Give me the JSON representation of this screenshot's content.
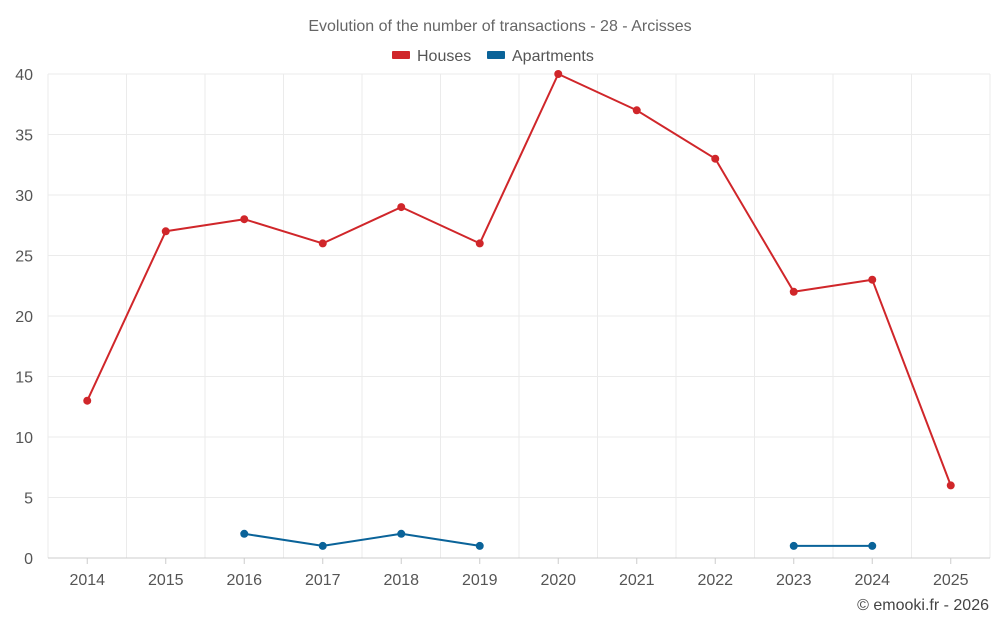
{
  "chart_data": {
    "type": "line",
    "title": "Evolution of the number of transactions - 28 - Arcisses",
    "categories": [
      "2014",
      "2015",
      "2016",
      "2017",
      "2018",
      "2019",
      "2020",
      "2021",
      "2022",
      "2023",
      "2024",
      "2025"
    ],
    "ylim": [
      0,
      40
    ],
    "yticks": [
      0,
      5,
      10,
      15,
      20,
      25,
      30,
      35,
      40
    ],
    "grid": true,
    "legend_position": "top-center",
    "series": [
      {
        "name": "Houses",
        "color": "#d0262a",
        "values": [
          13,
          27,
          28,
          26,
          29,
          26,
          40,
          37,
          33,
          22,
          23,
          6
        ]
      },
      {
        "name": "Apartments",
        "color": "#0a6399",
        "values": [
          null,
          null,
          2,
          1,
          2,
          1,
          null,
          null,
          null,
          1,
          1,
          null
        ]
      }
    ]
  },
  "credit": "© emooki.fr - 2026"
}
